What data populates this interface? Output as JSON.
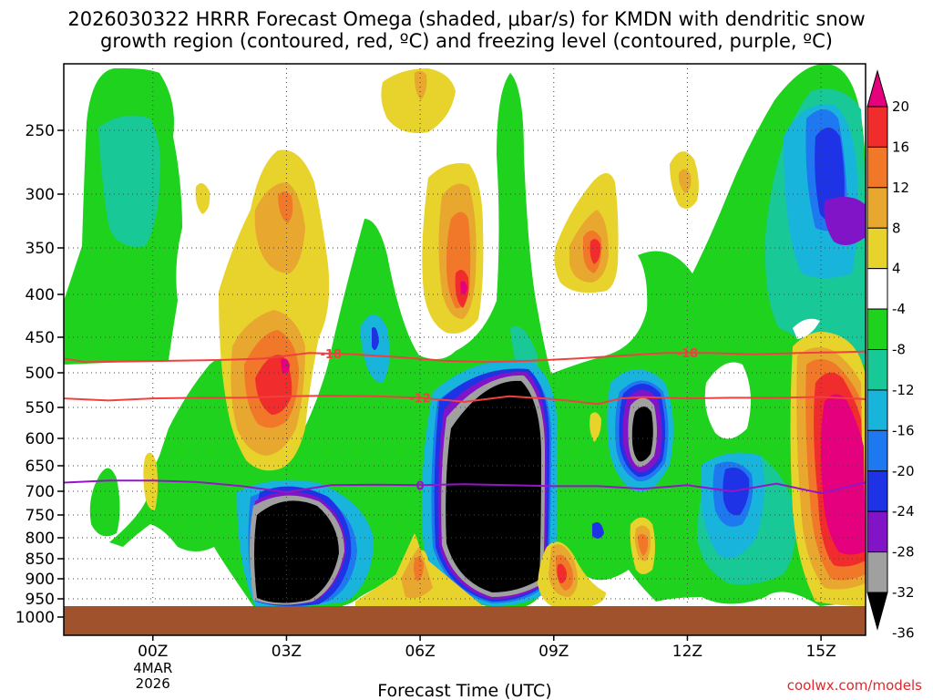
{
  "chart_data": {
    "type": "heatmap",
    "title_line1": "2026030322 HRRR Forecast Omega (shaded, μbar/s) for KMDN with dendritic snow",
    "title_line2": "growth region (contoured, red, ºC) and freezing level (contoured, purple, ºC)",
    "xlabel": "Forecast Time (UTC)",
    "ylabel": "",
    "x_ticks": [
      {
        "hours": 0,
        "label": "00Z",
        "sub1": "4MAR",
        "sub2": "2026"
      },
      {
        "hours": 3,
        "label": "03Z"
      },
      {
        "hours": 6,
        "label": "06Z"
      },
      {
        "hours": 9,
        "label": "09Z"
      },
      {
        "hours": 12,
        "label": "12Z"
      },
      {
        "hours": 15,
        "label": "15Z"
      }
    ],
    "xlim_hours": [
      -2,
      16
    ],
    "y_ticks": [
      250,
      300,
      350,
      400,
      450,
      500,
      550,
      600,
      650,
      700,
      750,
      800,
      850,
      900,
      950,
      1000
    ],
    "ylim_hPa": [
      200,
      1000
    ],
    "colorbar": {
      "labels": [
        "20",
        "16",
        "12",
        "8",
        "4",
        "-4",
        "-8",
        "-12",
        "-16",
        "-20",
        "-24",
        "-28",
        "-32",
        "-36"
      ],
      "colors": [
        "#e5007e",
        "#f02c2c",
        "#f07828",
        "#e8a830",
        "#e8d22c",
        "#ffffff",
        "#1ed21e",
        "#18c896",
        "#18b4dc",
        "#1e78f0",
        "#1e32e6",
        "#8214c8",
        "#a0a0a0",
        "#000000"
      ]
    },
    "series": [
      {
        "name": "-18 ºC",
        "label": "-18",
        "color": "#f04040",
        "points": [
          [
            -2,
            480
          ],
          [
            -1.5,
            485
          ],
          [
            -0.5,
            484
          ],
          [
            0.5,
            483
          ],
          [
            1.5,
            482
          ],
          [
            2.5,
            480
          ],
          [
            3.5,
            472
          ],
          [
            4.5,
            474
          ],
          [
            5.5,
            478
          ],
          [
            6.5,
            483
          ],
          [
            7.5,
            485
          ],
          [
            8.5,
            483
          ],
          [
            9.5,
            480
          ],
          [
            10.5,
            476
          ],
          [
            11.5,
            472
          ],
          [
            12.5,
            472
          ],
          [
            13.5,
            474
          ],
          [
            14.5,
            472
          ],
          [
            15.5,
            471
          ],
          [
            16,
            470
          ]
        ]
      },
      {
        "name": "-12 ºC",
        "label": "-12",
        "color": "#f04040",
        "points": [
          [
            -2,
            537
          ],
          [
            -1,
            540
          ],
          [
            0,
            537
          ],
          [
            1,
            536
          ],
          [
            2,
            536
          ],
          [
            3,
            534
          ],
          [
            4,
            533
          ],
          [
            5,
            534
          ],
          [
            6,
            536
          ],
          [
            7,
            542
          ],
          [
            8,
            534
          ],
          [
            9,
            538
          ],
          [
            10,
            545
          ],
          [
            10.5,
            537
          ],
          [
            11,
            535
          ],
          [
            12,
            537
          ],
          [
            13,
            536
          ],
          [
            14,
            536
          ],
          [
            15,
            535
          ],
          [
            16,
            538
          ]
        ]
      },
      {
        "name": "0 ºC freezing level",
        "label": "0",
        "color": "#9614c8",
        "points": [
          [
            -2,
            683
          ],
          [
            -1,
            679
          ],
          [
            0,
            679
          ],
          [
            1,
            682
          ],
          [
            2,
            690
          ],
          [
            3,
            702
          ],
          [
            4,
            688
          ],
          [
            5,
            687
          ],
          [
            6,
            688
          ],
          [
            7,
            686
          ],
          [
            8,
            688
          ],
          [
            9,
            690
          ],
          [
            10,
            690
          ],
          [
            11,
            695
          ],
          [
            12,
            688
          ],
          [
            13,
            700
          ],
          [
            14,
            685
          ],
          [
            15,
            704
          ],
          [
            16,
            683
          ]
        ]
      }
    ],
    "terrain_color": "#a0522d",
    "terrain_top_hPa": 980
  },
  "footer": {
    "credit": "coolwx.com/models"
  }
}
